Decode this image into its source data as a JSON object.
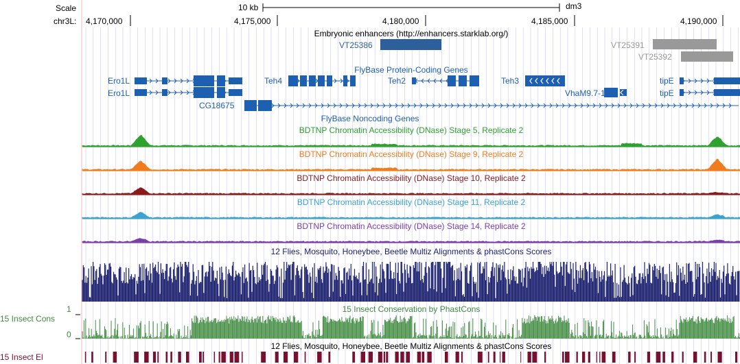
{
  "ruler": {
    "scale_label": "Scale",
    "scale_bar_text": "10 kb",
    "assembly": "dm3",
    "chrom_label": "chr3L:",
    "positions": [
      "4,170,000",
      "4,175,000",
      "4,180,000",
      "4,185,000",
      "4,190,000"
    ]
  },
  "tracks": {
    "enhancers": {
      "title": "Embryonic enhancers (http://enhancers.starklab.org/)",
      "items": [
        "VT25386",
        "VT25391",
        "VT25392"
      ]
    },
    "protein_genes": {
      "title": "FlyBase Protein-Coding Genes",
      "genes": [
        "Ero1L",
        "Ero1L",
        "Teh4",
        "Teh2",
        "Teh3",
        "VhaM9.7-1",
        "tipE",
        "tipE",
        "CG18675"
      ]
    },
    "noncoding": {
      "title": "FlyBase Noncoding Genes"
    },
    "dnase": [
      {
        "title": "BDTNP Chromatin Accessibility (DNase) Stage 5, Replicate 2",
        "color": "#2ea12e"
      },
      {
        "title": "BDTNP Chromatin Accessibility (DNase) Stage 9, Replicate 2",
        "color": "#f07c1e"
      },
      {
        "title": "BDTNP Chromatin Accessibility (DNase) Stage 10, Replicate 2",
        "color": "#8b1a1a"
      },
      {
        "title": "BDTNP Chromatin Accessibility (DNase) Stage 11, Replicate 2",
        "color": "#3aa3d0"
      },
      {
        "title": "BDTNP Chromatin Accessibility (DNase) Stage 14, Replicate 2",
        "color": "#7b3fa8"
      }
    ],
    "multiz": {
      "title": "12 Flies, Mosquito, Honeybee, Beetle Multiz Alignments & phastCons Scores",
      "color": "#1a1f6e"
    },
    "phastcons": {
      "title": "15 Insect Conservation by PhastCons",
      "side_label": "15 Insect Cons",
      "axis_max": "1",
      "axis_min": "0",
      "color": "#3f8a3f"
    },
    "multiz2": {
      "title": "12 Flies, Mosquito, Honeybee, Beetle Multiz Alignments & phastCons Scores"
    },
    "elements": {
      "side_label": "15 Insect El",
      "color": "#7a1030"
    }
  },
  "colors": {
    "gene": "#1d5fb0",
    "enhancer_active": "#2d5f9a",
    "enhancer_gray": "#999999",
    "grid": "#c8c8f0"
  }
}
